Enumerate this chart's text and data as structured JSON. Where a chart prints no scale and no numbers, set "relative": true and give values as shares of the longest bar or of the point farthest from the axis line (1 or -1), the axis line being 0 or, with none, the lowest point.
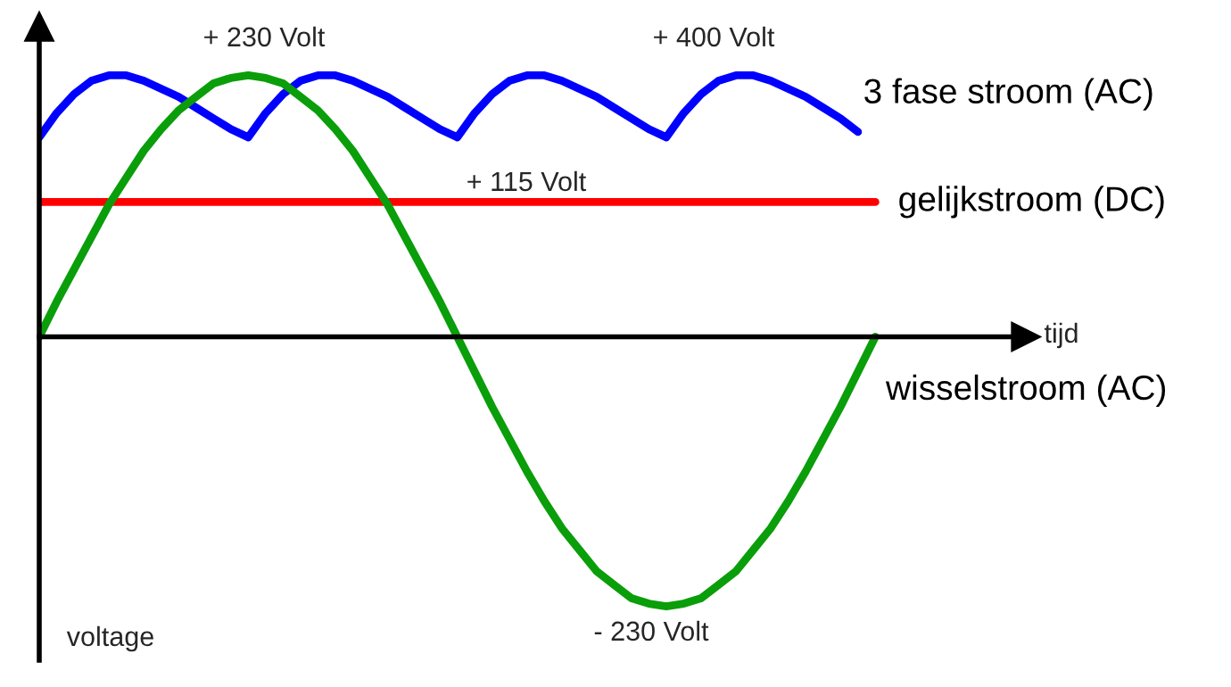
{
  "chart_data": {
    "type": "line",
    "relative": true,
    "categories": [
      null,
      null,
      null,
      null,
      null,
      null,
      null,
      null,
      null,
      null,
      null,
      null,
      null,
      null,
      null,
      null,
      null,
      null,
      null,
      null,
      null,
      null,
      null,
      null,
      null,
      null,
      null,
      null,
      null,
      null,
      null,
      null,
      null,
      null,
      null,
      null,
      null,
      null,
      null,
      null,
      null,
      null,
      null,
      null,
      null,
      null,
      null,
      null,
      null
    ],
    "series": [
      {
        "name": "3 fase stroom (AC)",
        "color": "#0000ff",
        "values": [
          0.74,
          0.83,
          0.9,
          0.95,
          0.97,
          0.97,
          0.95,
          0.92,
          0.89,
          0.85,
          0.81,
          0.77,
          0.74,
          0.83,
          0.9,
          0.95,
          0.97,
          0.97,
          0.95,
          0.92,
          0.89,
          0.85,
          0.81,
          0.77,
          0.74,
          0.83,
          0.9,
          0.95,
          0.97,
          0.97,
          0.95,
          0.92,
          0.89,
          0.85,
          0.81,
          0.77,
          0.74,
          0.83,
          0.9,
          0.95,
          0.97,
          0.97,
          0.95,
          0.92,
          0.89,
          0.85,
          0.81,
          0.76,
          null
        ]
      },
      {
        "name": "gelijkstroom (DC)",
        "color": "#ff0000",
        "values": [
          0.5,
          0.5,
          0.5,
          0.5,
          0.5,
          0.5,
          0.5,
          0.5,
          0.5,
          0.5,
          0.5,
          0.5,
          0.5,
          0.5,
          0.5,
          0.5,
          0.5,
          0.5,
          0.5,
          0.5,
          0.5,
          0.5,
          0.5,
          0.5,
          0.5,
          0.5,
          0.5,
          0.5,
          0.5,
          0.5,
          0.5,
          0.5,
          0.5,
          0.5,
          0.5,
          0.5,
          0.5,
          0.5,
          0.5,
          0.5,
          0.5,
          0.5,
          0.5,
          0.5,
          0.5,
          0.5,
          0.5,
          0.5,
          0.5
        ]
      },
      {
        "name": "wisselstroom (AC)",
        "color": "#0a9e0a",
        "values": [
          0,
          0.13,
          0.25,
          0.37,
          0.49,
          0.59,
          0.69,
          0.77,
          0.84,
          0.89,
          0.94,
          0.96,
          0.97,
          0.96,
          0.94,
          0.89,
          0.84,
          0.77,
          0.69,
          0.59,
          0.49,
          0.37,
          0.25,
          0.13,
          0,
          -0.13,
          -0.26,
          -0.38,
          -0.5,
          -0.61,
          -0.71,
          -0.79,
          -0.87,
          -0.92,
          -0.97,
          -0.99,
          -1,
          -0.99,
          -0.97,
          -0.92,
          -0.87,
          -0.79,
          -0.71,
          -0.61,
          -0.5,
          -0.38,
          -0.26,
          -0.13,
          0
        ]
      }
    ],
    "annotations": [
      "+ 230 Volt",
      "+ 400 Volt",
      "+ 115 Volt",
      "- 230 Volt",
      "tijd",
      "voltage"
    ],
    "grid": false,
    "legend": false,
    "marker": "none",
    "line_style": "solid"
  }
}
